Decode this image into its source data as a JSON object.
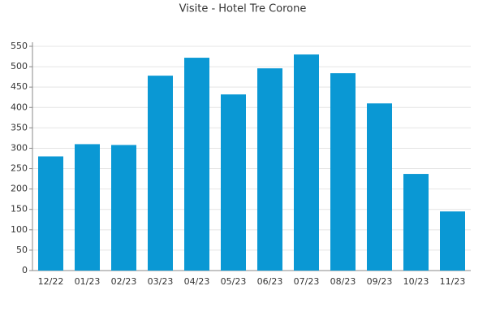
{
  "chart_data": {
    "type": "bar",
    "title": "Visite - Hotel Tre Corone",
    "categories": [
      "12/22",
      "01/23",
      "02/23",
      "03/23",
      "04/23",
      "05/23",
      "06/23",
      "07/23",
      "08/23",
      "09/23",
      "10/23",
      "11/23"
    ],
    "values": [
      280,
      310,
      308,
      478,
      522,
      432,
      496,
      530,
      484,
      410,
      237,
      145
    ],
    "color": "#0a98d4",
    "ylim": [
      0,
      550
    ],
    "yticks": [
      0,
      50,
      100,
      150,
      200,
      250,
      300,
      350,
      400,
      450,
      500,
      550
    ],
    "grid": true
  }
}
